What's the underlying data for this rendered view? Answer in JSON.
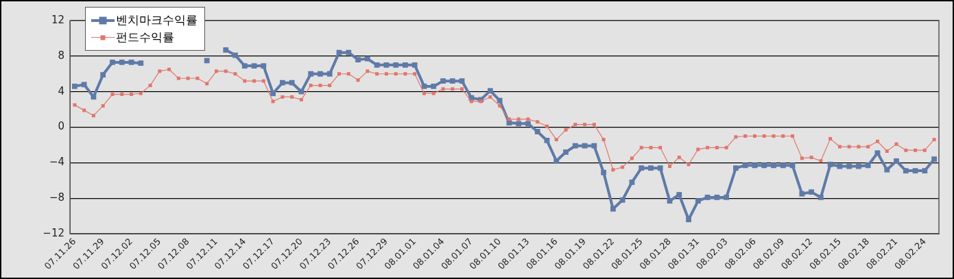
{
  "chart_data": {
    "type": "line",
    "categories": [
      "07.11.26",
      null,
      null,
      "07.11.29",
      null,
      null,
      "07.12.02",
      null,
      null,
      "07.12.05",
      null,
      null,
      "07.12.08",
      null,
      null,
      "07.12.11",
      null,
      null,
      "07.12.14",
      null,
      null,
      "07.12.17",
      null,
      null,
      "07.12.20",
      null,
      null,
      "07.12.23",
      null,
      null,
      "07.12.26",
      null,
      null,
      "07.12.29",
      null,
      null,
      "08.01.01",
      null,
      null,
      "08.01.04",
      null,
      null,
      "08.01.07",
      null,
      null,
      "08.01.10",
      null,
      null,
      "08.01.13",
      null,
      null,
      "08.01.16",
      null,
      null,
      "08.01.19",
      null,
      null,
      "08.01.22",
      null,
      null,
      "08.01.25",
      null,
      null,
      "08.01.28",
      null,
      null,
      "08.01.31",
      null,
      null,
      "08.02.03",
      null,
      null,
      "08.02.06",
      null,
      null,
      "08.02.09",
      null,
      null,
      "08.02.12",
      null,
      null,
      "08.02.15",
      null,
      null,
      "08.02.18",
      null,
      null,
      "08.02.21",
      null,
      null,
      "08.02.24",
      null
    ],
    "series": [
      {
        "name": "벤치마크수익률",
        "color": "#5f7aa8",
        "values": [
          4.6,
          4.8,
          3.4,
          5.9,
          7.3,
          7.3,
          7.3,
          7.2,
          null,
          null,
          null,
          null,
          null,
          null,
          7.5,
          null,
          8.7,
          8.1,
          6.9,
          6.9,
          6.9,
          3.8,
          5.0,
          5.0,
          4.0,
          6.0,
          6.0,
          6.0,
          8.4,
          8.4,
          7.6,
          7.7,
          7.0,
          7.0,
          7.0,
          7.0,
          7.0,
          4.6,
          4.6,
          5.2,
          5.2,
          5.2,
          3.3,
          3.1,
          4.1,
          3.0,
          0.5,
          0.4,
          0.4,
          -0.5,
          -1.5,
          -3.8,
          -2.8,
          -2.1,
          -2.1,
          -2.1,
          -5.1,
          -9.2,
          -8.2,
          -6.2,
          -4.6,
          -4.6,
          -4.6,
          -8.3,
          -7.6,
          -10.4,
          -8.3,
          -7.9,
          -7.9,
          -7.9,
          -4.6,
          -4.3,
          -4.3,
          -4.3,
          -4.3,
          -4.3,
          -4.3,
          -7.5,
          -7.3,
          -7.9,
          -4.2,
          -4.4,
          -4.4,
          -4.4,
          -4.3,
          -2.9,
          -4.8,
          -3.8,
          -4.9,
          -4.9,
          -4.9,
          -3.6
        ]
      },
      {
        "name": "펀드수익률",
        "color": "#e2756c",
        "values": [
          2.5,
          1.9,
          1.3,
          2.4,
          3.7,
          3.7,
          3.7,
          3.8,
          4.7,
          6.3,
          6.5,
          5.5,
          5.5,
          5.5,
          4.9,
          6.3,
          6.3,
          6.0,
          5.2,
          5.2,
          5.2,
          2.9,
          3.4,
          3.4,
          3.1,
          4.7,
          4.7,
          4.7,
          6.0,
          6.0,
          5.3,
          6.3,
          6.0,
          6.0,
          6.0,
          6.0,
          6.0,
          3.8,
          3.8,
          4.3,
          4.3,
          4.3,
          2.9,
          2.9,
          3.4,
          2.4,
          0.9,
          0.9,
          0.9,
          0.6,
          0.1,
          -1.4,
          -0.3,
          0.3,
          0.3,
          0.3,
          -1.4,
          -4.8,
          -4.5,
          -3.5,
          -2.3,
          -2.3,
          -2.3,
          -4.4,
          -3.4,
          -4.2,
          -2.5,
          -2.3,
          -2.3,
          -2.3,
          -1.1,
          -1.0,
          -1.0,
          -1.0,
          -1.0,
          -1.0,
          -1.0,
          -3.5,
          -3.4,
          -3.8,
          -1.3,
          -2.2,
          -2.2,
          -2.2,
          -2.2,
          -1.6,
          -2.7,
          -1.9,
          -2.6,
          -2.6,
          -2.6,
          -1.4
        ]
      }
    ],
    "ylim": [
      -12,
      12
    ],
    "yticks": [
      {
        "value": -12,
        "label": "−12"
      },
      {
        "value": -8,
        "label": "−8"
      },
      {
        "value": -4,
        "label": "−4"
      },
      0,
      4,
      8,
      12
    ],
    "grid": "y",
    "legend": "top left",
    "marker": "square",
    "line_style": "solid"
  }
}
